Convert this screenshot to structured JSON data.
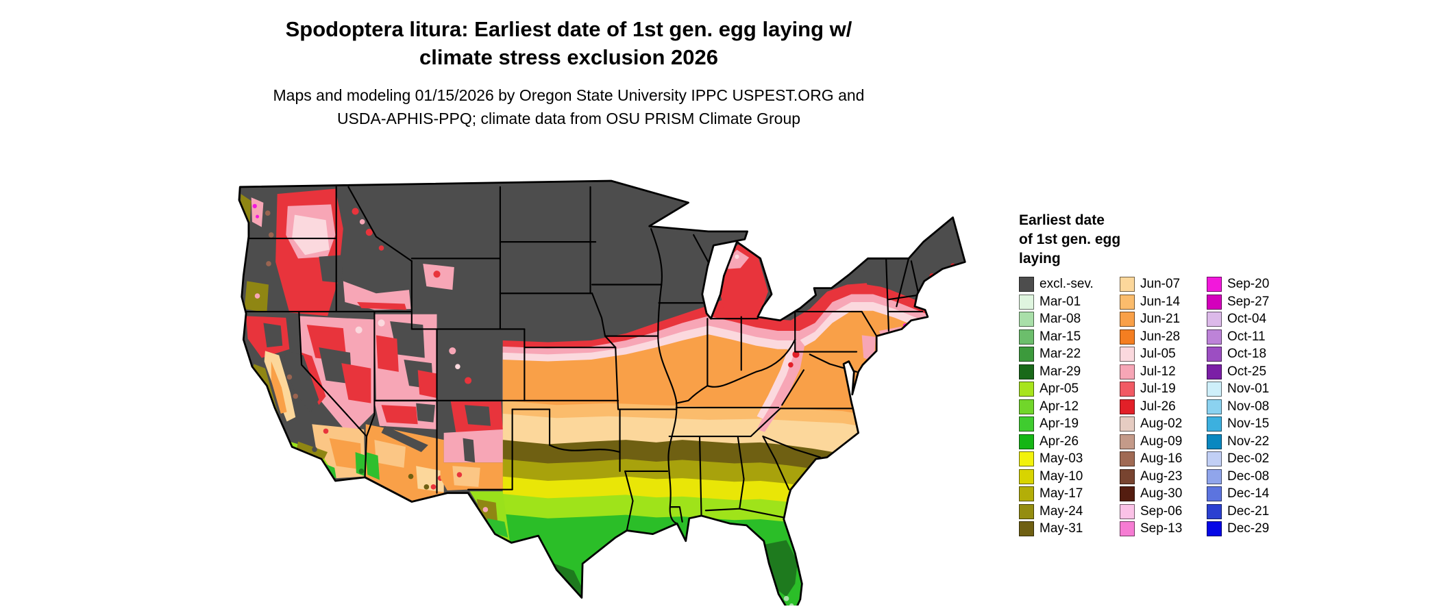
{
  "header": {
    "title_line1": "Spodoptera litura: Earliest date of 1st gen. egg laying w/",
    "title_line2": "climate stress exclusion 2026",
    "subtitle_line1": "Maps and modeling 01/15/2026 by Oregon State University IPPC USPEST.ORG and",
    "subtitle_line2": "USDA-APHIS-PPQ; climate data from OSU PRISM Climate Group"
  },
  "legend": {
    "title_line1": "Earliest date",
    "title_line2": "of 1st gen. egg",
    "title_line3": "laying",
    "columns": [
      {
        "entries": [
          {
            "label": "excl.-sev.",
            "color": "#4D4D4D"
          },
          {
            "label": "Mar-01",
            "color": "#DFF5DF"
          },
          {
            "label": "Mar-08",
            "color": "#A9DFA9"
          },
          {
            "label": "Mar-15",
            "color": "#6CBE6C"
          },
          {
            "label": "Mar-22",
            "color": "#3C9A3C"
          },
          {
            "label": "Mar-29",
            "color": "#196919"
          },
          {
            "label": "Apr-05",
            "color": "#A7E41C"
          },
          {
            "label": "Apr-12",
            "color": "#71D62A"
          },
          {
            "label": "Apr-19",
            "color": "#3FCC2F"
          },
          {
            "label": "Apr-26",
            "color": "#15B615"
          },
          {
            "label": "May-03",
            "color": "#F2F20C"
          },
          {
            "label": "May-10",
            "color": "#D8D400"
          },
          {
            "label": "May-17",
            "color": "#B3AE08"
          },
          {
            "label": "May-24",
            "color": "#948D10"
          },
          {
            "label": "May-31",
            "color": "#6F6012"
          }
        ]
      },
      {
        "entries": [
          {
            "label": "Jun-07",
            "color": "#FCD79B"
          },
          {
            "label": "Jun-14",
            "color": "#FBBC6C"
          },
          {
            "label": "Jun-21",
            "color": "#F9A048"
          },
          {
            "label": "Jun-28",
            "color": "#F47E21"
          },
          {
            "label": "Jul-05",
            "color": "#FBD9DE"
          },
          {
            "label": "Jul-12",
            "color": "#F7A6B6"
          },
          {
            "label": "Jul-19",
            "color": "#F15A64"
          },
          {
            "label": "Jul-26",
            "color": "#E22028"
          },
          {
            "label": "Aug-02",
            "color": "#E6CCC2"
          },
          {
            "label": "Aug-09",
            "color": "#C49A89"
          },
          {
            "label": "Aug-16",
            "color": "#A06A54"
          },
          {
            "label": "Aug-23",
            "color": "#784430"
          },
          {
            "label": "Aug-30",
            "color": "#541D10"
          },
          {
            "label": "Sep-06",
            "color": "#FBC2E7"
          },
          {
            "label": "Sep-13",
            "color": "#F67CD3"
          }
        ]
      },
      {
        "entries": [
          {
            "label": "Sep-20",
            "color": "#F218DB"
          },
          {
            "label": "Sep-27",
            "color": "#D400BC"
          },
          {
            "label": "Oct-04",
            "color": "#DCB9E9"
          },
          {
            "label": "Oct-11",
            "color": "#BD83D8"
          },
          {
            "label": "Oct-18",
            "color": "#9C4EC2"
          },
          {
            "label": "Oct-25",
            "color": "#7B1FA6"
          },
          {
            "label": "Nov-01",
            "color": "#CEEFFA"
          },
          {
            "label": "Nov-08",
            "color": "#8BD2F0"
          },
          {
            "label": "Nov-15",
            "color": "#3CB0DF"
          },
          {
            "label": "Nov-22",
            "color": "#0A88C0"
          },
          {
            "label": "Dec-02",
            "color": "#C1CFF5"
          },
          {
            "label": "Dec-08",
            "color": "#90A5EB"
          },
          {
            "label": "Dec-14",
            "color": "#5C74DF"
          },
          {
            "label": "Dec-21",
            "color": "#2B40D1"
          },
          {
            "label": "Dec-29",
            "color": "#0508E6"
          }
        ]
      }
    ]
  }
}
